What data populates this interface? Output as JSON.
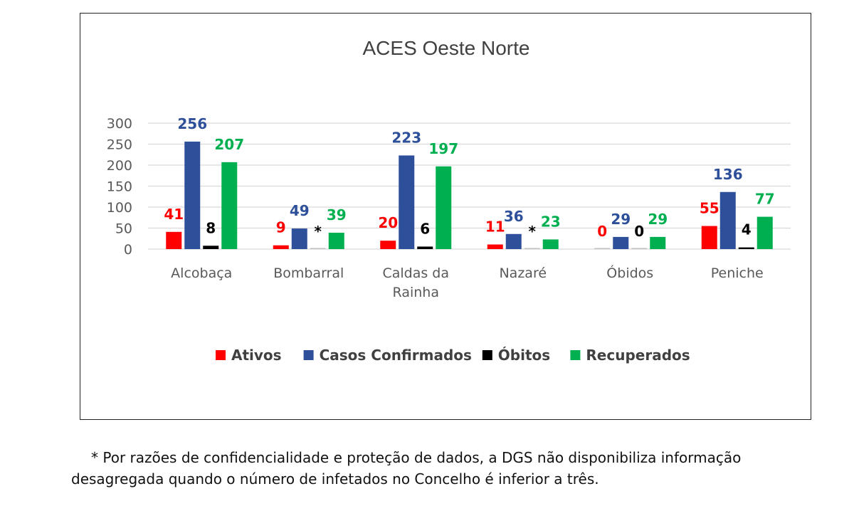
{
  "chart_data": {
    "type": "bar",
    "title": "ACES Oeste Norte",
    "categories": [
      [
        "Alcobaça"
      ],
      [
        "Bombarral"
      ],
      [
        "Caldas da",
        "Rainha"
      ],
      [
        "Nazaré"
      ],
      [
        "Óbidos"
      ],
      [
        "Peniche"
      ]
    ],
    "ylim": [
      0,
      300
    ],
    "yticks": [
      0,
      50,
      100,
      150,
      200,
      250,
      300
    ],
    "grid": true,
    "legend_position": "bottom",
    "series": [
      {
        "name": "Ativos",
        "color": "#ff0000",
        "values": [
          41,
          9,
          20,
          11,
          0,
          55
        ],
        "labels": [
          "41",
          "9",
          "20",
          "11",
          "0",
          "55"
        ]
      },
      {
        "name": "Casos Confirmados",
        "color": "#2e4f9a",
        "values": [
          256,
          49,
          223,
          36,
          29,
          136
        ],
        "labels": [
          "256",
          "49",
          "223",
          "36",
          "29",
          "136"
        ]
      },
      {
        "name": "Óbitos",
        "color": "#000000",
        "values": [
          8,
          0,
          6,
          0,
          0,
          4
        ],
        "labels": [
          "8",
          "*",
          "6",
          "*",
          "0",
          "4"
        ]
      },
      {
        "name": "Recuperados",
        "color": "#00b050",
        "values": [
          207,
          39,
          197,
          23,
          29,
          77
        ],
        "labels": [
          "207",
          "39",
          "197",
          "23",
          "29",
          "77"
        ]
      }
    ]
  },
  "footnote": {
    "line1": "* Por razões de confidencialidade e proteção de dados, a DGS não disponibiliza informação",
    "line2": "desagregada quando o número de infetados no Concelho é inferior a três."
  }
}
